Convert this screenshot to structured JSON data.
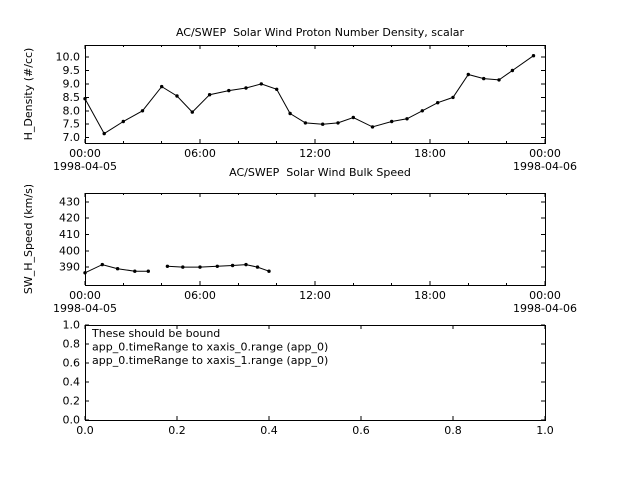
{
  "app": {
    "background": "#ffffff",
    "foreground": "#000000"
  },
  "chart_data": [
    {
      "type": "line",
      "title": "AC/SWEP  Solar Wind Proton Number Density, scalar",
      "ylabel": "H_Density (#/cc)",
      "xlim": [
        0,
        24
      ],
      "ylim": [
        6.8,
        10.45
      ],
      "yticks": [
        {
          "pos": 7.0,
          "label": "7.0"
        },
        {
          "pos": 7.5,
          "label": "7.5"
        },
        {
          "pos": 8.0,
          "label": "8.0"
        },
        {
          "pos": 8.5,
          "label": "8.5"
        },
        {
          "pos": 9.0,
          "label": "9.0"
        },
        {
          "pos": 9.5,
          "label": "9.5"
        },
        {
          "pos": 10.0,
          "label": "10.0"
        }
      ],
      "xticks": [
        {
          "pos": 0,
          "label": "00:00",
          "sub": "1998-04-05"
        },
        {
          "pos": 6,
          "label": "06:00"
        },
        {
          "pos": 12,
          "label": "12:00"
        },
        {
          "pos": 18,
          "label": "18:00"
        },
        {
          "pos": 24,
          "label": "00:00",
          "sub": "1998-04-06"
        }
      ],
      "xminor": [
        2,
        4,
        8,
        10,
        14,
        16,
        20,
        22
      ],
      "series": [
        {
          "name": "H_Density",
          "marker": true,
          "segments": [
            {
              "x": [
                0,
                1,
                2,
                3,
                4,
                4.8,
                5.6,
                6.5,
                7.5,
                8.4,
                9.2,
                10,
                10.7,
                11.5,
                12.4,
                13.2,
                14,
                15,
                16,
                16.8,
                17.6,
                18.4,
                19.2,
                20,
                20.8,
                21.6,
                22.3,
                23.4
              ],
              "y": [
                8.45,
                7.15,
                7.6,
                8.0,
                8.9,
                8.55,
                7.95,
                8.6,
                8.75,
                8.85,
                9.0,
                8.8,
                7.9,
                7.55,
                7.5,
                7.55,
                7.75,
                7.4,
                7.6,
                7.7,
                8.0,
                8.3,
                8.5,
                9.35,
                9.2,
                9.15,
                9.5,
                10.05
              ]
            }
          ]
        }
      ]
    },
    {
      "type": "line",
      "title": "AC/SWEP  Solar Wind Bulk Speed",
      "ylabel": "SW_H_Speed (km/s)",
      "xlim": [
        0,
        24
      ],
      "ylim": [
        379,
        435.5
      ],
      "yticks": [
        {
          "pos": 390,
          "label": "390"
        },
        {
          "pos": 400,
          "label": "400"
        },
        {
          "pos": 410,
          "label": "410"
        },
        {
          "pos": 420,
          "label": "420"
        },
        {
          "pos": 430,
          "label": "430"
        }
      ],
      "xticks": [
        {
          "pos": 0,
          "label": "00:00",
          "sub": "1998-04-05"
        },
        {
          "pos": 6,
          "label": "06:00"
        },
        {
          "pos": 12,
          "label": "12:00"
        },
        {
          "pos": 18,
          "label": "18:00"
        },
        {
          "pos": 24,
          "label": "00:00",
          "sub": "1998-04-06"
        }
      ],
      "xminor": [
        2,
        4,
        8,
        10,
        14,
        16,
        20,
        22
      ],
      "series": [
        {
          "name": "SW_H_Speed",
          "marker": true,
          "segments": [
            {
              "x": [
                0,
                0.9,
                1.7,
                2.6,
                3.3
              ],
              "y": [
                386.5,
                391.5,
                389.0,
                387.5,
                387.5
              ]
            },
            {
              "x": [
                4.3,
                5.1,
                6.0,
                6.9,
                7.7,
                8.4,
                9.0,
                9.6
              ],
              "y": [
                390.5,
                390.0,
                390.0,
                390.5,
                391.0,
                391.5,
                390.0,
                387.5
              ]
            }
          ]
        }
      ]
    },
    {
      "type": "line",
      "title": "",
      "ylabel": "",
      "xlim": [
        0,
        1
      ],
      "ylim": [
        0,
        1
      ],
      "yticks": [
        {
          "pos": 1.0,
          "label": "1.0"
        },
        {
          "pos": 0.8,
          "label": "0.8"
        },
        {
          "pos": 0.6,
          "label": "0.6"
        },
        {
          "pos": 0.4,
          "label": "0.4"
        },
        {
          "pos": 0.2,
          "label": "0.2"
        },
        {
          "pos": 0.0,
          "label": "0.0"
        }
      ],
      "xticks": [
        {
          "pos": 0.0,
          "label": "0.0"
        },
        {
          "pos": 0.2,
          "label": "0.2"
        },
        {
          "pos": 0.4,
          "label": "0.4"
        },
        {
          "pos": 0.6,
          "label": "0.6"
        },
        {
          "pos": 0.8,
          "label": "0.8"
        },
        {
          "pos": 1.0,
          "label": "1.0"
        }
      ],
      "xminor": [],
      "series": [],
      "annotation": {
        "lines": [
          "These should be bound",
          "app_0.timeRange to xaxis_0.range  (app_0)",
          "app_0.timeRange to xaxis_1.range  (app_0)"
        ]
      }
    }
  ]
}
